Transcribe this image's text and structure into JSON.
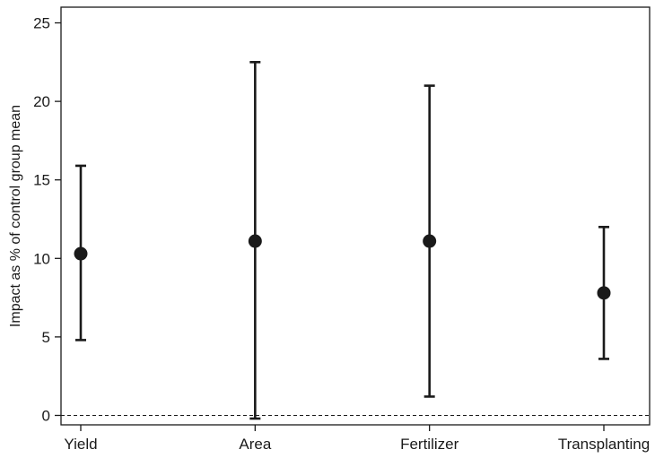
{
  "chart_data": {
    "type": "scatter",
    "subtype": "point-with-error-bars",
    "title": "",
    "xlabel": "",
    "ylabel": "Impact as % of control group mean",
    "categories": [
      "Yield",
      "Area",
      "Fertilizer",
      "Transplanting"
    ],
    "series": [
      {
        "values": [
          10.3,
          11.1,
          11.1,
          7.8
        ],
        "lower": [
          4.8,
          -0.2,
          1.2,
          3.6
        ],
        "upper": [
          15.9,
          22.5,
          21.0,
          12.0
        ]
      }
    ],
    "ylim": [
      -0.6,
      26.0
    ],
    "yticks": [
      0,
      5,
      10,
      15,
      20,
      25
    ],
    "reference_line": {
      "y": 0,
      "style": "dashed"
    },
    "grid": false,
    "legend": "none",
    "colors": {
      "marker": "#1a1a1a",
      "line": "#1a1a1a"
    }
  }
}
